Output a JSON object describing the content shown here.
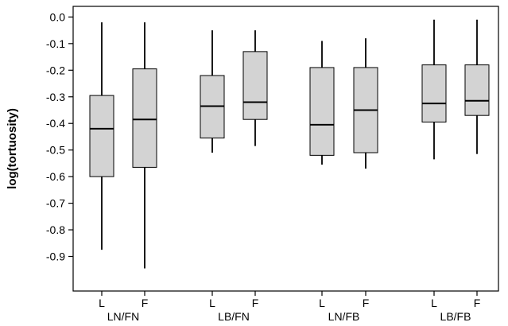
{
  "chart_data": {
    "type": "box",
    "title": "",
    "xlabel": "",
    "ylabel": "log(tortuosity)",
    "ylim": [
      -1.03,
      0.04
    ],
    "yticks": [
      0.0,
      -0.1,
      -0.2,
      -0.3,
      -0.4,
      -0.5,
      -0.6,
      -0.7,
      -0.8,
      -0.9
    ],
    "ytick_labels": [
      "0.0",
      "-0.1",
      "-0.2",
      "-0.3",
      "-0.4",
      "-0.5",
      "-0.6",
      "-0.7",
      "-0.8",
      "-0.9"
    ],
    "grid": false,
    "box_color": "#d3d3d3",
    "groups": [
      {
        "name": "LN/FN",
        "boxes": [
          {
            "label": "L",
            "min": -0.875,
            "q1": -0.6,
            "median": -0.42,
            "q3": -0.295,
            "max": -0.02
          },
          {
            "label": "F",
            "min": -0.945,
            "q1": -0.565,
            "median": -0.385,
            "q3": -0.195,
            "max": -0.02
          }
        ]
      },
      {
        "name": "LB/FN",
        "boxes": [
          {
            "label": "L",
            "min": -0.51,
            "q1": -0.455,
            "median": -0.335,
            "q3": -0.22,
            "max": -0.05
          },
          {
            "label": "F",
            "min": -0.485,
            "q1": -0.385,
            "median": -0.32,
            "q3": -0.13,
            "max": -0.05
          }
        ]
      },
      {
        "name": "LN/FB",
        "boxes": [
          {
            "label": "L",
            "min": -0.555,
            "q1": -0.52,
            "median": -0.405,
            "q3": -0.19,
            "max": -0.09
          },
          {
            "label": "F",
            "min": -0.57,
            "q1": -0.51,
            "median": -0.35,
            "q3": -0.19,
            "max": -0.08
          }
        ]
      },
      {
        "name": "LB/FB",
        "boxes": [
          {
            "label": "L",
            "min": -0.535,
            "q1": -0.395,
            "median": -0.325,
            "q3": -0.18,
            "max": -0.01
          },
          {
            "label": "F",
            "min": -0.515,
            "q1": -0.37,
            "median": -0.315,
            "q3": -0.18,
            "max": -0.01
          }
        ]
      }
    ]
  }
}
